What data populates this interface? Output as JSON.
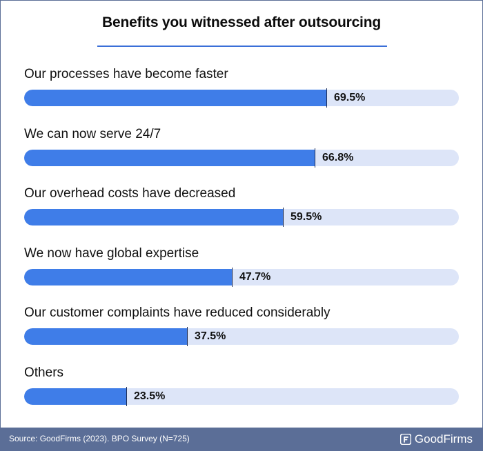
{
  "chart_data": {
    "type": "bar",
    "orientation": "horizontal",
    "title": "Benefits you witnessed after outsourcing",
    "categories": [
      "Our processes have become faster",
      "We can now serve 24/7",
      "Our overhead costs have decreased",
      "We now have global expertise",
      "Our customer complaints have reduced considerably",
      "Others"
    ],
    "values": [
      69.5,
      66.8,
      59.5,
      47.7,
      37.5,
      23.5
    ],
    "value_labels": [
      "69.5%",
      "66.8%",
      "59.5%",
      "47.7%",
      "37.5%",
      "23.5%"
    ],
    "xlim": [
      0,
      100
    ],
    "unit": "%",
    "grid": false,
    "legend": "none",
    "colors": {
      "bar": "#3f7de8",
      "track": "#dde5f8",
      "rule": "#3b6fd8"
    }
  },
  "footer": {
    "source": "Source: GoodFirms (2023). BPO Survey (N=725)",
    "brand": "GoodFirms",
    "brand_icon": "goodfirms-logo-icon",
    "background": "#5b6e97"
  }
}
